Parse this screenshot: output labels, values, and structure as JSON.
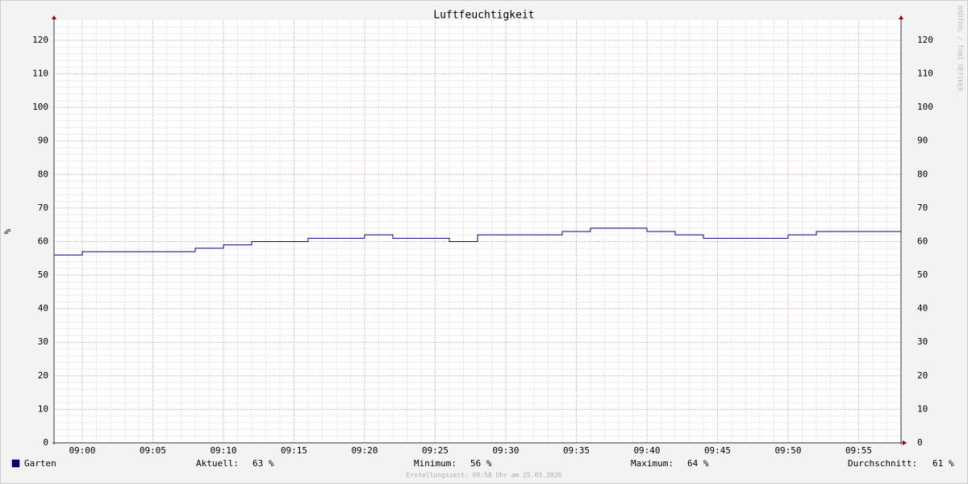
{
  "chart_data": {
    "type": "step-line",
    "title": "Luftfeuchtigkeit",
    "y_label": "%",
    "x": [
      "08:58",
      "09:00",
      "09:02",
      "09:04",
      "09:06",
      "09:08",
      "09:10",
      "09:12",
      "09:14",
      "09:16",
      "09:18",
      "09:20",
      "09:22",
      "09:24",
      "09:26",
      "09:28",
      "09:30",
      "09:32",
      "09:34",
      "09:36",
      "09:38",
      "09:40",
      "09:42",
      "09:44",
      "09:46",
      "09:48",
      "09:50",
      "09:52",
      "09:54",
      "09:56"
    ],
    "series": [
      {
        "name": "Garten",
        "color": "#000080",
        "values": [
          56,
          57,
          57,
          57,
          57,
          58,
          59,
          60,
          60,
          61,
          61,
          62,
          61,
          61,
          60,
          62,
          62,
          62,
          63,
          64,
          64,
          63,
          62,
          61,
          61,
          61,
          62,
          63,
          63,
          63
        ]
      }
    ],
    "xlim": [
      "08:58",
      "09:58"
    ],
    "xticks": [
      "09:00",
      "09:05",
      "09:10",
      "09:15",
      "09:20",
      "09:25",
      "09:30",
      "09:35",
      "09:40",
      "09:45",
      "09:50",
      "09:55"
    ],
    "ylim": [
      0,
      126
    ],
    "yticks": [
      0,
      10,
      20,
      30,
      40,
      50,
      60,
      70,
      80,
      90,
      100,
      110,
      120
    ],
    "grid": true,
    "minor_grid": {
      "y_step": 2,
      "x_step_minutes": 1
    },
    "stats": [
      {
        "label": "Aktuell:",
        "value": "63 %"
      },
      {
        "label": "Minimum:",
        "value": "56 %"
      },
      {
        "label": "Maximum:",
        "value": "64 %"
      },
      {
        "label": "Durchschnitt:",
        "value": "61 %"
      }
    ],
    "footer": "Erstellungszeit: 09:58 Uhr am 25.03.2026",
    "watermark": "RRDTOOL / TOBI OETIKER"
  }
}
